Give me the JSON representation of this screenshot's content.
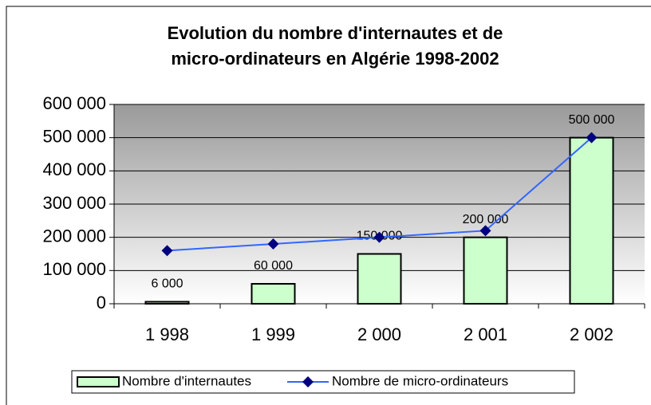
{
  "chart_data": {
    "type": "bar-line",
    "title": [
      "Evolution du nombre d'internautes et de",
      "micro-ordinateurs en Algérie 1998-2002"
    ],
    "categories": [
      "1 998",
      "1 999",
      "2 000",
      "2 001",
      "2 002"
    ],
    "series": [
      {
        "name": "Nombre d'internautes",
        "type": "bar",
        "color": "#ccffcc",
        "values": [
          6000,
          60000,
          150000,
          200000,
          500000
        ],
        "value_labels": [
          "6 000",
          "60 000",
          "150 000",
          "200 000",
          "500 000"
        ]
      },
      {
        "name": "Nombre de micro-ordinateurs",
        "type": "line",
        "color": "#3366ff",
        "marker_color": "#000080",
        "values": [
          160000,
          180000,
          200000,
          220000,
          500000
        ]
      }
    ],
    "ylim": [
      0,
      600000
    ],
    "yticks": [
      0,
      {
        "value": 100000,
        "label": "100 000"
      },
      {
        "value": 200000,
        "label": "200 000"
      },
      {
        "value": 300000,
        "label": "300 000"
      },
      {
        "value": 400000,
        "label": "400 000"
      },
      {
        "value": 500000,
        "label": "500 000"
      },
      {
        "value": 600000,
        "label": "600 000"
      }
    ],
    "grid": true,
    "legend": "bottom"
  }
}
